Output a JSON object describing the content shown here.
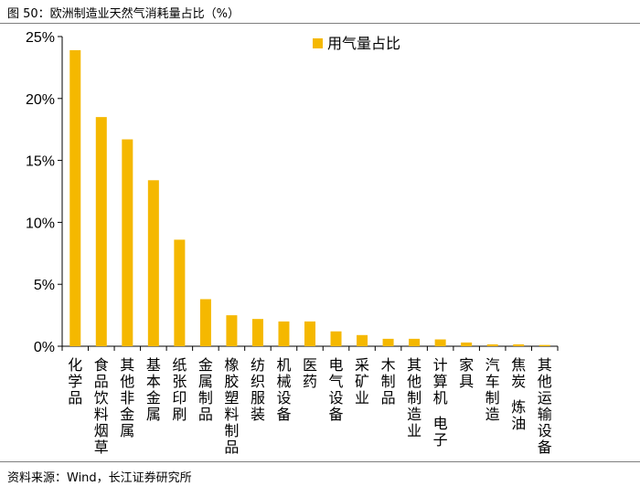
{
  "figure_title": "图 50：欧洲制造业天然气消耗量占比（%）",
  "source_note": "资料来源：Wind，长江证券研究所",
  "colors": {
    "bar": "#F5B800",
    "axis": "#000000"
  },
  "chart_data": {
    "type": "bar",
    "title": "欧洲制造业天然气消耗量占比（%）",
    "xlabel": "",
    "ylabel": "",
    "ylim": [
      0,
      25
    ],
    "yticks": [
      0,
      5,
      10,
      15,
      20,
      25
    ],
    "ytick_labels": [
      "0%",
      "5%",
      "10%",
      "15%",
      "20%",
      "25%"
    ],
    "legend": [
      "用气量占比"
    ],
    "legend_position": "top-right",
    "grid": false,
    "categories": [
      "化学品",
      "食品饮料烟草",
      "其他非金属",
      "基本金属",
      "纸张印刷",
      "金属制品",
      "橡胶塑料制品",
      "纺织服装",
      "机械设备",
      "医药",
      "电气设备",
      "采矿业",
      "木制品",
      "其他制造业",
      "计算机 电子",
      "家具",
      "汽车制造",
      "焦炭 炼油",
      "其他运输设备"
    ],
    "series": [
      {
        "name": "用气量占比",
        "values": [
          23.9,
          18.5,
          16.7,
          13.4,
          8.6,
          3.8,
          2.5,
          2.2,
          2.0,
          2.0,
          1.2,
          0.9,
          0.6,
          0.6,
          0.55,
          0.3,
          0.15,
          0.15,
          0.1
        ]
      }
    ]
  }
}
